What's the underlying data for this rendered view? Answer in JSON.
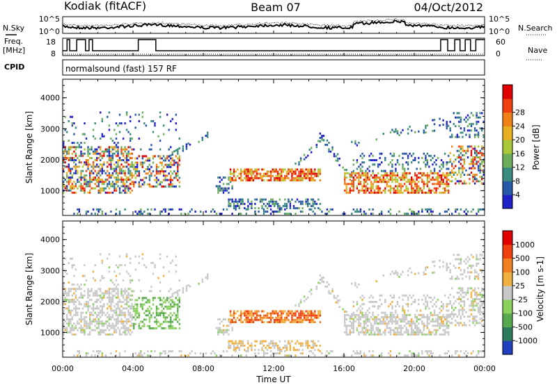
{
  "header": {
    "station": "Kodiak (fitACF)",
    "beam": "Beam 07",
    "date": "04/Oct/2012"
  },
  "left_labels": {
    "nsky": "N.Sky",
    "freq": "Freq.",
    "freq_unit": "[MHz]",
    "cpid": "CPID"
  },
  "right_labels": {
    "nsearch": "N.Search",
    "nave": "Nave"
  },
  "top_panel": {
    "noise_ticks_left": [
      "10^5",
      "10^0"
    ],
    "noise_ticks_right": [
      "10^5",
      "10^0"
    ],
    "freq_ticks_left": [
      "18",
      "8"
    ],
    "nave_ticks_right": [
      "60",
      "0"
    ],
    "cpid_text": "normalsound (fast) 157 RF"
  },
  "chart_data": [
    {
      "type": "heatmap",
      "name": "power",
      "ylabel": "Slant Range [km]",
      "yticks": [
        "1000",
        "2000",
        "3000",
        "4000"
      ],
      "ylim": [
        200,
        4600
      ],
      "xlim": [
        0,
        24
      ],
      "colorbar": {
        "label": "Power [dB]",
        "ticks": [
          "4",
          "8",
          "12",
          "16",
          "20",
          "24",
          "28"
        ],
        "colors": [
          "#2020c8",
          "#2858a8",
          "#3a8a80",
          "#6cae5c",
          "#a8c83a",
          "#e8b020",
          "#f08018",
          "#f04010",
          "#e00000"
        ]
      }
    },
    {
      "type": "heatmap",
      "name": "velocity",
      "ylabel": "Slant Range [km]",
      "yticks": [
        "1000",
        "2000",
        "3000",
        "4000"
      ],
      "ylim": [
        200,
        4600
      ],
      "xlim": [
        0,
        24
      ],
      "colorbar": {
        "label": "Velocity [m s-1]",
        "ticks": [
          "1000",
          "500",
          "100",
          "25",
          "-25",
          "-100",
          "-500",
          "-1000"
        ],
        "colors": [
          "#2040c0",
          "#2e7a5c",
          "#58a850",
          "#8cd060",
          "#c8c8c8",
          "#f0b040",
          "#f08020",
          "#f04010",
          "#e00000"
        ]
      }
    }
  ],
  "x_axis": {
    "ticks": [
      "00:00",
      "04:00",
      "08:00",
      "12:00",
      "16:00",
      "20:00",
      "00:00"
    ],
    "label": "Time UT"
  }
}
